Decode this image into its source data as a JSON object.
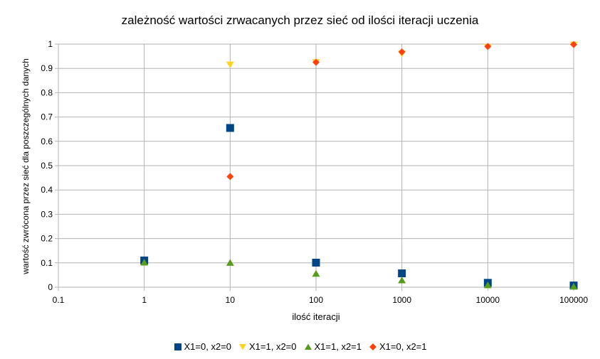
{
  "chart_data": {
    "type": "scatter",
    "title": "zależność wartości zrwacanych przez sieć od ilości iteracji uczenia",
    "xlabel": "ilość iteracji",
    "ylabel": "wartość zwrócona przez sieć dla poszczególnych danych",
    "xscale": "log",
    "xlim": [
      0.1,
      100000
    ],
    "ylim": [
      0,
      1
    ],
    "grid": "both",
    "legend": "bottom",
    "xticks": [
      0.1,
      1,
      10,
      100,
      1000,
      10000,
      100000
    ],
    "xtick_labels": [
      "0.1",
      "1",
      "10",
      "100",
      "1000",
      "10000",
      "100000"
    ],
    "yticks": [
      0,
      0.1,
      0.2,
      0.3,
      0.4,
      0.5,
      0.6,
      0.7,
      0.8,
      0.9,
      1
    ],
    "ytick_labels": [
      "0",
      "0.1",
      "0.2",
      "0.3",
      "0.4",
      "0.5",
      "0.6",
      "0.7",
      "0.8",
      "0.9",
      "1"
    ],
    "series": [
      {
        "name": "X1=0, x2=0",
        "marker": "square",
        "color": "#004586",
        "x": [
          1,
          10,
          100,
          1000,
          10000,
          100000
        ],
        "y": [
          0.11,
          0.655,
          0.101,
          0.057,
          0.018,
          0.007
        ]
      },
      {
        "name": "X1=1, x2=0",
        "marker": "triangle-down",
        "color": "#ffd320",
        "x": [
          10,
          100,
          1000,
          10000,
          100000
        ],
        "y": [
          0.915,
          0.925,
          0.96,
          0.988,
          0.997
        ]
      },
      {
        "name": "X1=1, x2=1",
        "marker": "triangle-up",
        "color": "#579d1c",
        "x": [
          1,
          10,
          100,
          1000,
          10000,
          100000
        ],
        "y": [
          0.102,
          0.101,
          0.056,
          0.029,
          0.009,
          0.003
        ]
      },
      {
        "name": "X1=0, x2=1",
        "marker": "diamond",
        "color": "#ff420e",
        "x": [
          10,
          100,
          1000,
          10000,
          100000
        ],
        "y": [
          0.455,
          0.925,
          0.968,
          0.99,
          0.998
        ]
      }
    ]
  }
}
